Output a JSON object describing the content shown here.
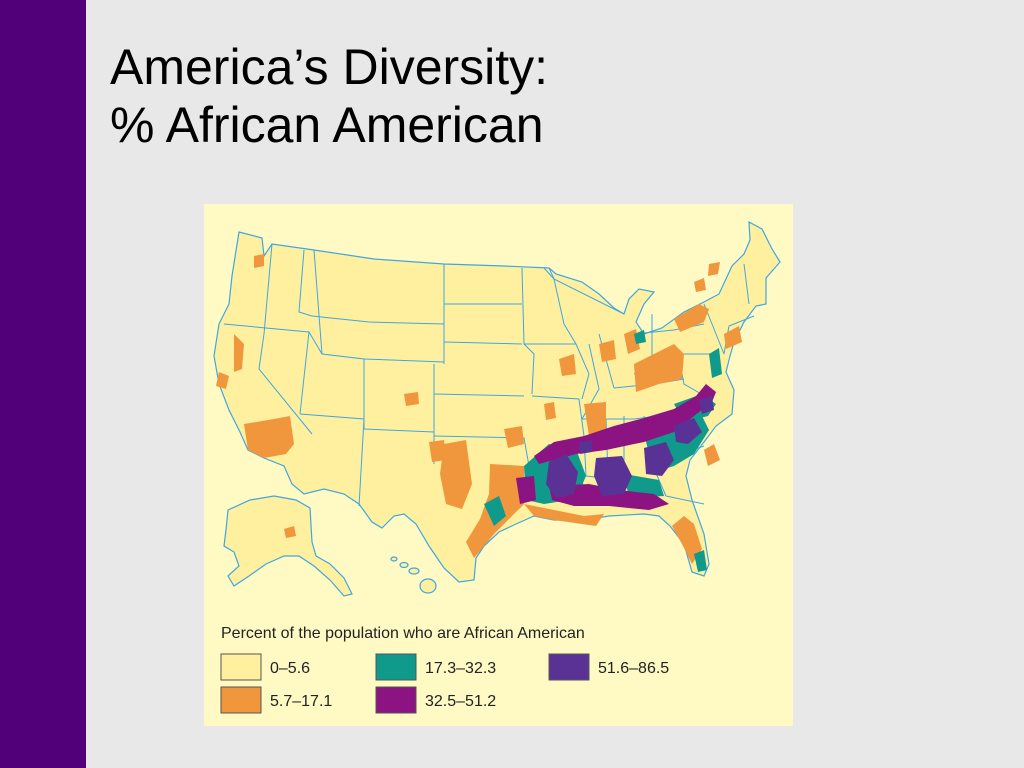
{
  "slide": {
    "title_line1": "America’s Diversity:",
    "title_line2": "% African American",
    "accent_color": "#52007a",
    "background_color": "#e8e8e8"
  },
  "map": {
    "panel_color": "#fff9c4",
    "base_fill": "#fff0a0",
    "state_border_color": "#3fa6e0",
    "legend": {
      "title": "Percent of the population who are African American",
      "items": [
        {
          "label": "0–5.6",
          "color": "#fff0a0"
        },
        {
          "label": "5.7–17.1",
          "color": "#f0963c"
        },
        {
          "label": "17.3–32.3",
          "color": "#0f9a8c"
        },
        {
          "label": "32.5–51.2",
          "color": "#8c1482"
        },
        {
          "label": "51.6–86.5",
          "color": "#5a3296"
        }
      ]
    }
  }
}
